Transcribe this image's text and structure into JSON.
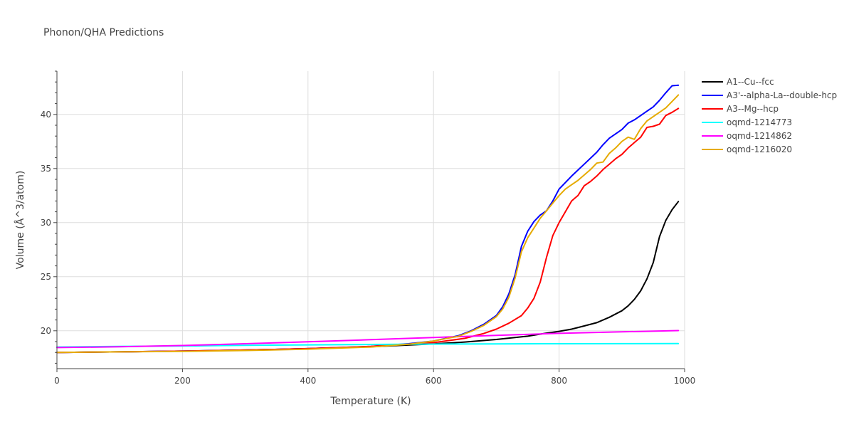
{
  "chart_data": {
    "type": "line",
    "title": "Phonon/QHA Predictions",
    "xlabel": "Temperature (K)",
    "ylabel": "Volume (Å^3/atom)",
    "xlim": [
      0,
      1000
    ],
    "ylim": [
      16.5,
      44
    ],
    "x_ticks": [
      0,
      200,
      400,
      600,
      800,
      1000
    ],
    "y_ticks": [
      20,
      25,
      30,
      35,
      40
    ],
    "grid": true,
    "legend_position": "right",
    "series": [
      {
        "name": "A1--Cu--fcc",
        "color": "#000000",
        "points": [
          [
            0,
            18.0
          ],
          [
            100,
            18.05
          ],
          [
            200,
            18.12
          ],
          [
            300,
            18.22
          ],
          [
            400,
            18.35
          ],
          [
            500,
            18.52
          ],
          [
            600,
            18.78
          ],
          [
            650,
            18.96
          ],
          [
            700,
            19.2
          ],
          [
            750,
            19.5
          ],
          [
            780,
            19.78
          ],
          [
            800,
            19.95
          ],
          [
            820,
            20.15
          ],
          [
            840,
            20.45
          ],
          [
            860,
            20.75
          ],
          [
            880,
            21.25
          ],
          [
            900,
            21.85
          ],
          [
            910,
            22.3
          ],
          [
            920,
            22.9
          ],
          [
            930,
            23.7
          ],
          [
            940,
            24.8
          ],
          [
            950,
            26.3
          ],
          [
            960,
            28.7
          ],
          [
            970,
            30.2
          ],
          [
            980,
            31.2
          ],
          [
            990,
            31.95
          ]
        ]
      },
      {
        "name": "A3'--alpha-La--double-hcp",
        "color": "#0000ff",
        "points": [
          [
            0,
            18.0
          ],
          [
            100,
            18.05
          ],
          [
            200,
            18.12
          ],
          [
            300,
            18.22
          ],
          [
            400,
            18.35
          ],
          [
            500,
            18.55
          ],
          [
            560,
            18.8
          ],
          [
            600,
            19.05
          ],
          [
            640,
            19.55
          ],
          [
            660,
            20.0
          ],
          [
            680,
            20.6
          ],
          [
            700,
            21.4
          ],
          [
            710,
            22.2
          ],
          [
            720,
            23.4
          ],
          [
            730,
            25.2
          ],
          [
            740,
            27.8
          ],
          [
            750,
            29.2
          ],
          [
            760,
            30.1
          ],
          [
            770,
            30.7
          ],
          [
            780,
            31.1
          ],
          [
            790,
            32.0
          ],
          [
            800,
            33.1
          ],
          [
            820,
            34.3
          ],
          [
            840,
            35.4
          ],
          [
            860,
            36.5
          ],
          [
            870,
            37.2
          ],
          [
            880,
            37.8
          ],
          [
            900,
            38.6
          ],
          [
            910,
            39.2
          ],
          [
            920,
            39.5
          ],
          [
            930,
            39.9
          ],
          [
            940,
            40.3
          ],
          [
            950,
            40.7
          ],
          [
            960,
            41.3
          ],
          [
            970,
            42.0
          ],
          [
            980,
            42.65
          ],
          [
            990,
            42.7
          ]
        ]
      },
      {
        "name": "A3--Mg--hcp",
        "color": "#ff0000",
        "points": [
          [
            0,
            18.0
          ],
          [
            100,
            18.05
          ],
          [
            200,
            18.12
          ],
          [
            300,
            18.22
          ],
          [
            400,
            18.35
          ],
          [
            500,
            18.55
          ],
          [
            600,
            18.9
          ],
          [
            650,
            19.3
          ],
          [
            680,
            19.75
          ],
          [
            700,
            20.15
          ],
          [
            720,
            20.7
          ],
          [
            740,
            21.4
          ],
          [
            750,
            22.1
          ],
          [
            760,
            23.0
          ],
          [
            770,
            24.5
          ],
          [
            780,
            26.8
          ],
          [
            790,
            28.8
          ],
          [
            800,
            30.0
          ],
          [
            810,
            31.0
          ],
          [
            820,
            32.0
          ],
          [
            830,
            32.5
          ],
          [
            840,
            33.4
          ],
          [
            850,
            33.8
          ],
          [
            860,
            34.3
          ],
          [
            870,
            34.9
          ],
          [
            880,
            35.4
          ],
          [
            890,
            35.9
          ],
          [
            900,
            36.3
          ],
          [
            910,
            36.9
          ],
          [
            920,
            37.4
          ],
          [
            930,
            37.9
          ],
          [
            940,
            38.8
          ],
          [
            950,
            38.9
          ],
          [
            960,
            39.1
          ],
          [
            970,
            39.9
          ],
          [
            980,
            40.2
          ],
          [
            990,
            40.55
          ]
        ]
      },
      {
        "name": "oqmd-1214773",
        "color": "#00ffff",
        "points": [
          [
            0,
            18.5
          ],
          [
            100,
            18.55
          ],
          [
            200,
            18.6
          ],
          [
            300,
            18.66
          ],
          [
            400,
            18.7
          ],
          [
            500,
            18.74
          ],
          [
            600,
            18.77
          ],
          [
            700,
            18.79
          ],
          [
            800,
            18.8
          ],
          [
            900,
            18.81
          ],
          [
            990,
            18.82
          ]
        ]
      },
      {
        "name": "oqmd-1214862",
        "color": "#ff00ff",
        "points": [
          [
            0,
            18.45
          ],
          [
            100,
            18.52
          ],
          [
            200,
            18.64
          ],
          [
            300,
            18.8
          ],
          [
            400,
            18.98
          ],
          [
            500,
            19.18
          ],
          [
            600,
            19.38
          ],
          [
            700,
            19.58
          ],
          [
            800,
            19.76
          ],
          [
            900,
            19.9
          ],
          [
            990,
            20.02
          ]
        ]
      },
      {
        "name": "oqmd-1216020",
        "color": "#e6ab02",
        "points": [
          [
            0,
            18.0
          ],
          [
            100,
            18.05
          ],
          [
            200,
            18.1
          ],
          [
            300,
            18.18
          ],
          [
            400,
            18.3
          ],
          [
            500,
            18.5
          ],
          [
            560,
            18.75
          ],
          [
            600,
            19.05
          ],
          [
            640,
            19.5
          ],
          [
            660,
            19.95
          ],
          [
            680,
            20.5
          ],
          [
            700,
            21.3
          ],
          [
            710,
            22.0
          ],
          [
            720,
            23.1
          ],
          [
            730,
            24.9
          ],
          [
            740,
            27.3
          ],
          [
            750,
            28.6
          ],
          [
            760,
            29.5
          ],
          [
            770,
            30.4
          ],
          [
            780,
            31.1
          ],
          [
            790,
            31.8
          ],
          [
            800,
            32.5
          ],
          [
            810,
            33.1
          ],
          [
            820,
            33.5
          ],
          [
            830,
            33.9
          ],
          [
            840,
            34.4
          ],
          [
            850,
            34.9
          ],
          [
            860,
            35.5
          ],
          [
            870,
            35.6
          ],
          [
            880,
            36.4
          ],
          [
            890,
            36.9
          ],
          [
            900,
            37.5
          ],
          [
            910,
            37.9
          ],
          [
            920,
            37.7
          ],
          [
            930,
            38.7
          ],
          [
            940,
            39.4
          ],
          [
            950,
            39.8
          ],
          [
            960,
            40.2
          ],
          [
            970,
            40.6
          ],
          [
            980,
            41.2
          ],
          [
            990,
            41.8
          ]
        ]
      }
    ]
  }
}
